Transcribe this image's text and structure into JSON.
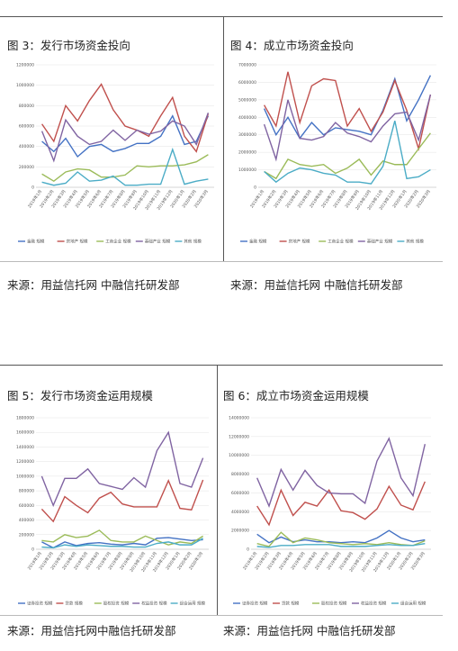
{
  "chart_data": [
    {
      "type": "line",
      "title": "图 3：发行市场资金投向",
      "source": "来源：用益信托网 中融信托研发部",
      "categories": [
        "2019年1月",
        "2019年2月",
        "2019年3月",
        "2019年4月",
        "2019年5月",
        "2019年6月",
        "2019年7月",
        "2019年8月",
        "2019年9月",
        "2019年10月",
        "2019年11月",
        "2019年12月",
        "2020年1月",
        "2020年2月",
        "2020年3月"
      ],
      "ylim": [
        0,
        1200000
      ],
      "yticks": [
        0,
        200000,
        400000,
        600000,
        800000,
        1000000,
        1200000
      ],
      "series": [
        {
          "name": "金融 规模",
          "color": "#4472c4",
          "values": [
            450000,
            350000,
            480000,
            300000,
            400000,
            420000,
            350000,
            380000,
            430000,
            430000,
            500000,
            700000,
            420000,
            450000,
            700000
          ]
        },
        {
          "name": "房地产 规模",
          "color": "#c0504d",
          "values": [
            620000,
            450000,
            800000,
            650000,
            850000,
            1010000,
            760000,
            600000,
            560000,
            500000,
            700000,
            880000,
            500000,
            350000,
            720000
          ]
        },
        {
          "name": "工商企业 规模",
          "color": "#9bbb59",
          "values": [
            130000,
            60000,
            150000,
            180000,
            170000,
            100000,
            100000,
            120000,
            210000,
            200000,
            210000,
            210000,
            220000,
            250000,
            320000
          ]
        },
        {
          "name": "基础产业 规模",
          "color": "#8064a2",
          "values": [
            550000,
            260000,
            660000,
            500000,
            420000,
            450000,
            560000,
            460000,
            560000,
            520000,
            550000,
            650000,
            600000,
            420000,
            730000
          ]
        },
        {
          "name": "其他 规模",
          "color": "#4bacc6",
          "values": [
            50000,
            20000,
            40000,
            150000,
            60000,
            70000,
            110000,
            20000,
            20000,
            30000,
            30000,
            370000,
            30000,
            60000,
            80000
          ]
        }
      ]
    },
    {
      "type": "line",
      "title": "图 4：成立市场资金投向",
      "source": "来源：用益信托网 中融信托研发部",
      "categories": [
        "2019年1月",
        "2019年2月",
        "2019年3月",
        "2019年4月",
        "2019年5月",
        "2019年6月",
        "2019年7月",
        "2019年8月",
        "2019年9月",
        "2019年10月",
        "2019年11月",
        "2019年12月",
        "2020年1月",
        "2020年2月",
        "2020年3月"
      ],
      "ylim": [
        0,
        7000000
      ],
      "yticks": [
        0,
        1000000,
        2000000,
        3000000,
        4000000,
        5000000,
        6000000,
        7000000
      ],
      "series": [
        {
          "name": "金融 规模",
          "color": "#4472c4",
          "values": [
            4500000,
            3000000,
            4000000,
            2800000,
            3700000,
            3000000,
            3400000,
            3300000,
            3200000,
            3000000,
            4400000,
            6200000,
            3800000,
            5000000,
            6400000
          ]
        },
        {
          "name": "房地产 规模",
          "color": "#c0504d",
          "values": [
            4700000,
            3500000,
            6600000,
            3700000,
            5800000,
            6200000,
            6100000,
            3500000,
            4500000,
            3200000,
            4300000,
            6100000,
            4400000,
            2200000,
            5300000
          ]
        },
        {
          "name": "工商企业 规模",
          "color": "#9bbb59",
          "values": [
            900000,
            500000,
            1600000,
            1300000,
            1200000,
            1300000,
            800000,
            1100000,
            1600000,
            700000,
            1500000,
            1300000,
            1300000,
            2200000,
            3100000
          ]
        },
        {
          "name": "基础产业 规模",
          "color": "#8064a2",
          "values": [
            3600000,
            1600000,
            5000000,
            2800000,
            2700000,
            2900000,
            3700000,
            3100000,
            2900000,
            2600000,
            3500000,
            4200000,
            4300000,
            2700000,
            5300000
          ]
        },
        {
          "name": "其他 规模",
          "color": "#4bacc6",
          "values": [
            900000,
            300000,
            800000,
            1100000,
            1000000,
            800000,
            700000,
            300000,
            300000,
            200000,
            1200000,
            3800000,
            500000,
            600000,
            1000000
          ]
        }
      ]
    },
    {
      "type": "line",
      "title": "图 5：发行市场资金运用规模",
      "source": "来源：用益信托网中融信托研发部",
      "categories": [
        "2019年1月",
        "2019年2月",
        "2019年3月",
        "2019年4月",
        "2019年5月",
        "2019年6月",
        "2019年7月",
        "2019年8月",
        "2019年9月",
        "2019年10月",
        "2019年11月",
        "2019年12月",
        "2020年1月",
        "2020年2月",
        "2020年3月"
      ],
      "ylim": [
        0,
        1800000
      ],
      "yticks": [
        0,
        200000,
        400000,
        600000,
        800000,
        1000000,
        1200000,
        1400000,
        1600000,
        1800000
      ],
      "series": [
        {
          "name": "证券投资 规模",
          "color": "#4472c4",
          "values": [
            100000,
            20000,
            100000,
            50000,
            80000,
            90000,
            70000,
            60000,
            80000,
            60000,
            150000,
            160000,
            140000,
            120000,
            130000
          ]
        },
        {
          "name": "贷款 规模",
          "color": "#c0504d",
          "values": [
            550000,
            380000,
            720000,
            600000,
            500000,
            700000,
            780000,
            620000,
            580000,
            580000,
            580000,
            940000,
            560000,
            540000,
            950000
          ]
        },
        {
          "name": "股权投资 规模",
          "color": "#9bbb59",
          "values": [
            120000,
            100000,
            200000,
            160000,
            180000,
            260000,
            120000,
            100000,
            100000,
            180000,
            120000,
            60000,
            100000,
            80000,
            180000
          ]
        },
        {
          "name": "权益投资 规模",
          "color": "#8064a2",
          "values": [
            1000000,
            600000,
            970000,
            970000,
            1100000,
            900000,
            860000,
            820000,
            980000,
            850000,
            1350000,
            1600000,
            900000,
            850000,
            1250000
          ]
        },
        {
          "name": "组合运用 规模",
          "color": "#4bacc6",
          "values": [
            30000,
            20000,
            60000,
            40000,
            60000,
            50000,
            40000,
            40000,
            30000,
            30000,
            80000,
            100000,
            60000,
            60000,
            150000
          ]
        }
      ]
    },
    {
      "type": "line",
      "title": "图 6：成立市场资金运用规模",
      "source": "来源：用益信托网 中融信托研发部",
      "categories": [
        "2019年1月",
        "2019年2月",
        "2019年3月",
        "2019年4月",
        "2019年5月",
        "2019年6月",
        "2019年7月",
        "2019年8月",
        "2019年9月",
        "2019年10月",
        "2019年11月",
        "2019年12月",
        "2020年1月",
        "2020年2月",
        "2020年3月"
      ],
      "ylim": [
        0,
        14000000
      ],
      "yticks": [
        0,
        2000000,
        4000000,
        6000000,
        8000000,
        10000000,
        12000000,
        14000000
      ],
      "series": [
        {
          "name": "证券投资 规模",
          "color": "#4472c4",
          "values": [
            1600000,
            700000,
            1300000,
            800000,
            1000000,
            800000,
            800000,
            700000,
            800000,
            700000,
            1200000,
            2000000,
            1200000,
            800000,
            1000000
          ]
        },
        {
          "name": "贷款 规模",
          "color": "#c0504d",
          "values": [
            4600000,
            2600000,
            6300000,
            3600000,
            5000000,
            4600000,
            6300000,
            4100000,
            3900000,
            3200000,
            4300000,
            6700000,
            4700000,
            4200000,
            7200000
          ]
        },
        {
          "name": "股权投资 规模",
          "color": "#9bbb59",
          "values": [
            600000,
            300000,
            1800000,
            700000,
            1200000,
            1000000,
            700000,
            600000,
            500000,
            600000,
            500000,
            700000,
            500000,
            400000,
            900000
          ]
        },
        {
          "name": "权益投资 规模",
          "color": "#8064a2",
          "values": [
            7600000,
            4600000,
            8500000,
            6300000,
            8400000,
            6800000,
            6000000,
            5900000,
            5900000,
            4900000,
            9400000,
            11800000,
            7600000,
            5700000,
            11200000
          ]
        },
        {
          "name": "组合运用 规模",
          "color": "#4bacc6",
          "values": [
            300000,
            200000,
            400000,
            400000,
            500000,
            500000,
            500000,
            300000,
            300000,
            300000,
            400000,
            500000,
            400000,
            400000,
            600000
          ]
        }
      ]
    }
  ]
}
